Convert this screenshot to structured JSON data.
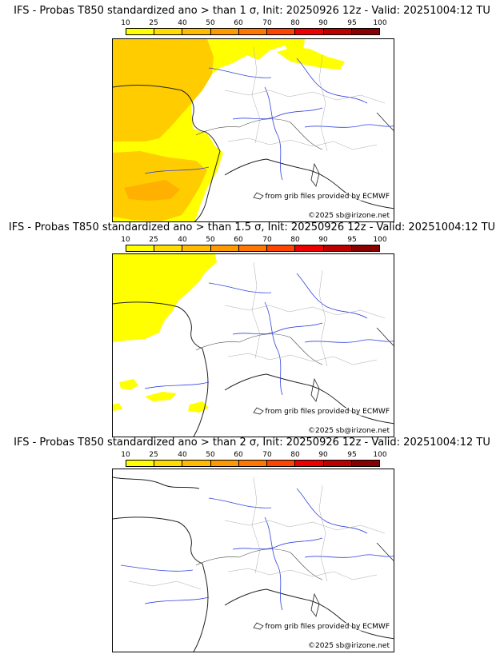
{
  "legend": {
    "ticks": [
      "10",
      "25",
      "40",
      "50",
      "60",
      "70",
      "80",
      "90",
      "95",
      "100"
    ],
    "colors": [
      "#ffff00",
      "#ffdd00",
      "#ffbb00",
      "#ff9900",
      "#ff7700",
      "#ff4400",
      "#ee0000",
      "#bb0000",
      "#880000"
    ]
  },
  "panels": [
    {
      "title": "IFS - Probas T850  standardized ano > than 1 σ, Init: 20250926 12z - Valid: 20251004:12 TU",
      "source": "from grib files provided by ECMWF",
      "copyright": "©2025 sb@irizone.net"
    },
    {
      "title": "IFS - Probas T850  standardized ano > than 1.5 σ, Init: 20250926 12z - Valid: 20251004:12 TU",
      "source": "from grib files provided by ECMWF",
      "copyright": "©2025 sb@irizone.net"
    },
    {
      "title": "IFS - Probas T850  standardized ano > than 2 σ, Init: 20250926 12z - Valid: 20251004:12 TU",
      "source": "from grib files provided by ECMWF",
      "copyright": "©2025 sb@irizone.net"
    }
  ]
}
